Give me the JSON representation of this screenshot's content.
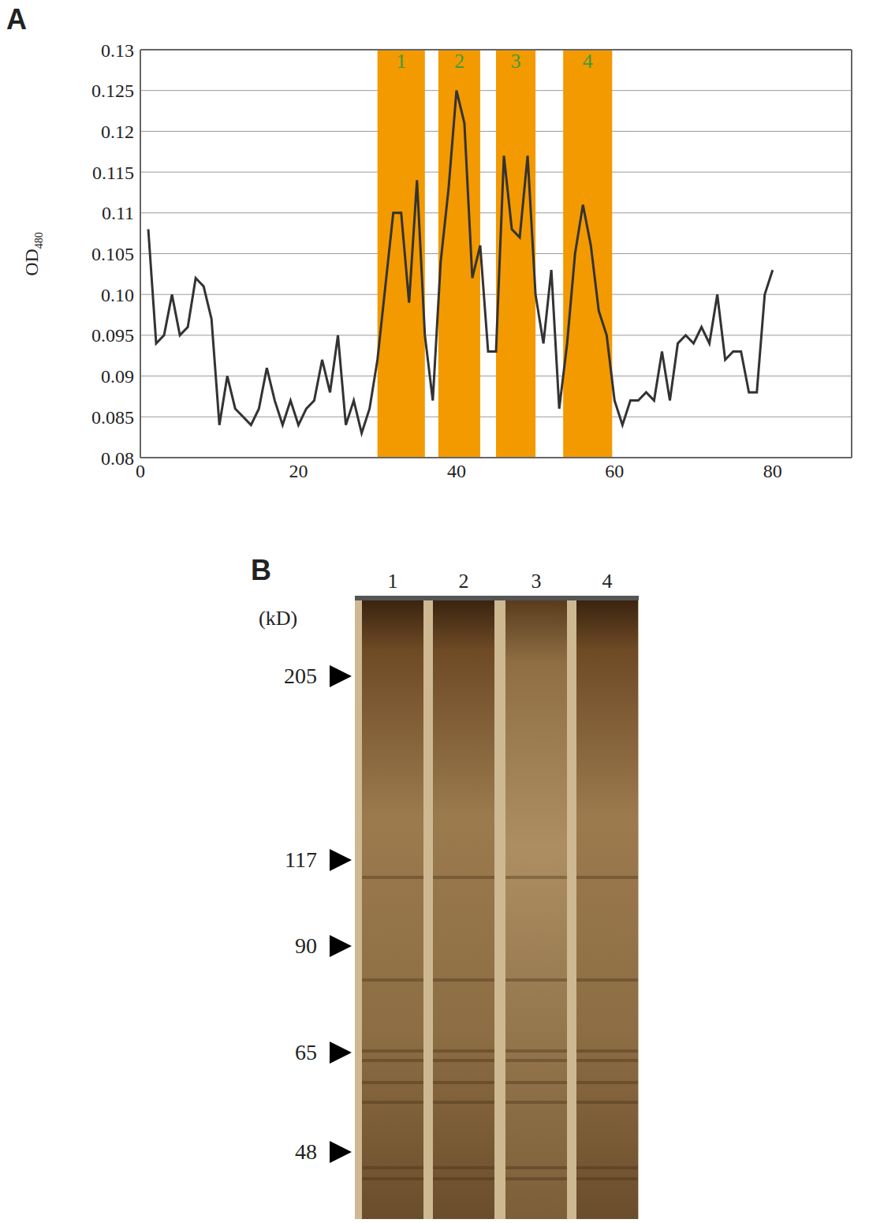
{
  "chart_data": {
    "type": "line",
    "ylabel": "OD480",
    "x": [
      1,
      2,
      3,
      4,
      5,
      6,
      7,
      8,
      9,
      10,
      11,
      12,
      13,
      14,
      15,
      16,
      17,
      18,
      19,
      20,
      21,
      22,
      23,
      24,
      25,
      26,
      27,
      28,
      29,
      30,
      31,
      32,
      33,
      34,
      35,
      36,
      37,
      38,
      39,
      40,
      41,
      42,
      43,
      44,
      45,
      46,
      47,
      48,
      49,
      50,
      51,
      52,
      53,
      54,
      55,
      56,
      57,
      58,
      59,
      60,
      61,
      62,
      63,
      64,
      65,
      66,
      67,
      68,
      69,
      70,
      71,
      72,
      73,
      74,
      75,
      76,
      77,
      78,
      79,
      80
    ],
    "values": [
      0.108,
      0.094,
      0.095,
      0.1,
      0.095,
      0.096,
      0.102,
      0.101,
      0.097,
      0.084,
      0.09,
      0.086,
      0.085,
      0.084,
      0.086,
      0.091,
      0.087,
      0.084,
      0.087,
      0.084,
      0.086,
      0.087,
      0.092,
      0.088,
      0.095,
      0.084,
      0.087,
      0.083,
      0.086,
      0.092,
      0.101,
      0.11,
      0.11,
      0.099,
      0.114,
      0.095,
      0.087,
      0.104,
      0.113,
      0.125,
      0.121,
      0.102,
      0.106,
      0.093,
      0.093,
      0.117,
      0.108,
      0.107,
      0.117,
      0.1,
      0.094,
      0.103,
      0.086,
      0.094,
      0.105,
      0.111,
      0.106,
      0.098,
      0.095,
      0.087,
      0.084,
      0.087,
      0.087,
      0.088,
      0.087,
      0.093,
      0.087,
      0.094,
      0.095,
      0.094,
      0.096,
      0.094,
      0.1,
      0.092,
      0.093,
      0.093,
      0.088,
      0.088,
      0.1,
      0.103
    ],
    "color": "#333333",
    "xlim": [
      0,
      90
    ],
    "xticks": [
      0,
      20,
      40,
      60,
      80
    ],
    "ylim": [
      0.08,
      0.13
    ],
    "yticks": [
      0.08,
      0.085,
      0.09,
      0.095,
      {
        "value": 0.1,
        "label": "0.10"
      },
      0.105,
      0.11,
      0.115,
      0.12,
      0.125,
      0.13
    ],
    "grid": true,
    "regions": [
      {
        "label": "1",
        "x": [
          30,
          36
        ],
        "color": "#f39a00"
      },
      {
        "label": "2",
        "x": [
          37.7,
          43
        ],
        "color": "#f39a00"
      },
      {
        "label": "3",
        "x": [
          45,
          50
        ],
        "color": "#f39a00"
      },
      {
        "label": "4",
        "x": [
          53.5,
          59.7
        ],
        "color": "#f39a00"
      }
    ],
    "region_label_color": "#3c9c3c"
  },
  "panel_letters": [
    "A",
    "B"
  ],
  "gel": {
    "unit": "(kD)",
    "lanes": [
      "1",
      "2",
      "3",
      "4"
    ],
    "markers": [
      205,
      117,
      90,
      65,
      48
    ]
  }
}
